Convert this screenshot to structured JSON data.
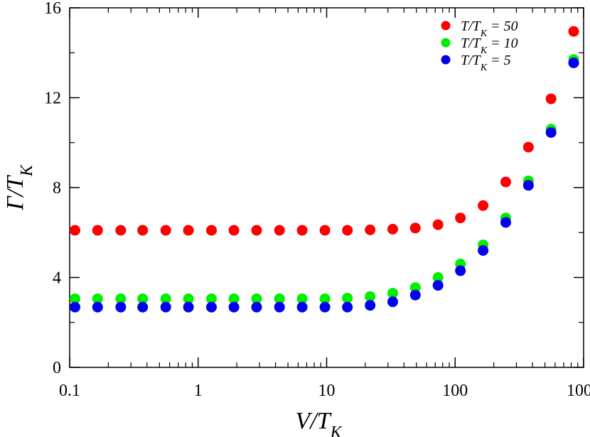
{
  "chart_data": {
    "type": "scatter",
    "title": "",
    "xlabel": "V/T_K",
    "ylabel": "Γ/T_K",
    "x_scale": "log",
    "xlim": [
      0.1,
      1000
    ],
    "ylim": [
      0,
      16
    ],
    "x_ticks": [
      0.1,
      1,
      10,
      100,
      1000
    ],
    "x_tick_labels": [
      "0.1",
      "1",
      "10",
      "100",
      "1000"
    ],
    "y_ticks": [
      0,
      4,
      8,
      12,
      16
    ],
    "y_tick_labels": [
      "0",
      "4",
      "8",
      "12",
      "16"
    ],
    "grid": false,
    "legend_position": "top-right",
    "x": [
      0.11,
      0.165,
      0.25,
      0.37,
      0.56,
      0.84,
      1.27,
      1.9,
      2.85,
      4.3,
      6.45,
      9.7,
      14.5,
      21.8,
      32.7,
      49,
      73.6,
      110,
      165,
      248,
      372,
      558,
      837
    ],
    "series": [
      {
        "name": "T/T_K = 50",
        "color": "#ff0000",
        "values": [
          6.1,
          6.1,
          6.1,
          6.1,
          6.1,
          6.1,
          6.1,
          6.1,
          6.1,
          6.1,
          6.1,
          6.1,
          6.1,
          6.12,
          6.15,
          6.2,
          6.35,
          6.65,
          7.2,
          8.25,
          9.8,
          11.95,
          14.95
        ]
      },
      {
        "name": "T/T_K = 10",
        "color": "#00ee00",
        "values": [
          3.05,
          3.05,
          3.05,
          3.05,
          3.05,
          3.05,
          3.05,
          3.05,
          3.05,
          3.05,
          3.05,
          3.05,
          3.08,
          3.15,
          3.3,
          3.55,
          4.0,
          4.6,
          5.45,
          6.65,
          8.3,
          10.6,
          13.7
        ]
      },
      {
        "name": "T/T_K = 5",
        "color": "#0000ee",
        "values": [
          2.68,
          2.68,
          2.68,
          2.68,
          2.68,
          2.68,
          2.68,
          2.68,
          2.68,
          2.68,
          2.68,
          2.68,
          2.68,
          2.76,
          2.92,
          3.22,
          3.65,
          4.3,
          5.2,
          6.45,
          8.1,
          10.45,
          13.55
        ]
      }
    ]
  }
}
